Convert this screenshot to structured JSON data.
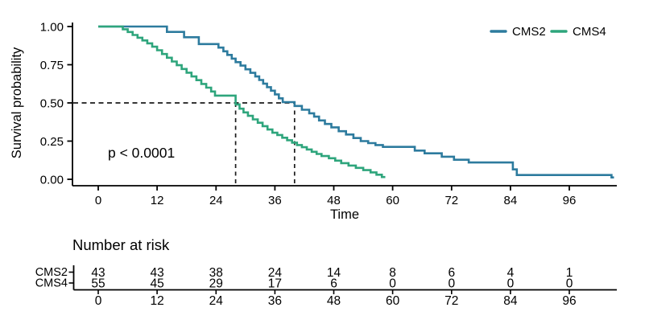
{
  "chart_data": {
    "type": "line",
    "subtype": "kaplan-meier-step",
    "title": "",
    "xlabel": "Time",
    "ylabel": "Survival probability",
    "annotation": "p < 0.0001",
    "legend_position": "top-right",
    "grid": false,
    "xlim": [
      0,
      105.5
    ],
    "ylim": [
      0,
      1
    ],
    "xticks": [
      0,
      12,
      24,
      36,
      48,
      60,
      72,
      84,
      96
    ],
    "yticks": [
      {
        "label": "1.00",
        "v": 1.0
      },
      {
        "label": "0.75",
        "v": 0.75
      },
      {
        "label": "0.50",
        "v": 0.5
      },
      {
        "label": "0.25",
        "v": 0.25
      },
      {
        "label": "0.00",
        "v": 0.0
      }
    ],
    "median_survival_reference": 0.5,
    "medians": [
      {
        "series": "CMS4",
        "time": 28
      },
      {
        "series": "CMS2",
        "time": 40
      }
    ],
    "style": {
      "axis_color": "#000000",
      "dashed_color": "#1a1a1a",
      "background": "#ffffff"
    },
    "series": [
      {
        "name": "CMS2",
        "color": "#2d7b9e",
        "end": 105.1,
        "steps": [
          [
            14,
            0.965
          ],
          [
            17.5,
            0.93
          ],
          [
            20.5,
            0.885
          ],
          [
            24.5,
            0.862
          ],
          [
            25.5,
            0.838
          ],
          [
            26.3,
            0.814
          ],
          [
            27.2,
            0.79
          ],
          [
            28,
            0.767
          ],
          [
            29,
            0.744
          ],
          [
            30,
            0.72
          ],
          [
            31,
            0.697
          ],
          [
            32,
            0.673
          ],
          [
            32.8,
            0.65
          ],
          [
            33.6,
            0.626
          ],
          [
            34.4,
            0.603
          ],
          [
            35.2,
            0.58
          ],
          [
            36,
            0.556
          ],
          [
            36.8,
            0.53
          ],
          [
            37.6,
            0.505
          ],
          [
            40,
            0.48
          ],
          [
            41.5,
            0.455
          ],
          [
            43,
            0.432
          ],
          [
            44,
            0.41
          ],
          [
            45,
            0.385
          ],
          [
            46.2,
            0.362
          ],
          [
            47.5,
            0.34
          ],
          [
            49,
            0.315
          ],
          [
            50.5,
            0.293
          ],
          [
            52,
            0.27
          ],
          [
            53.5,
            0.25
          ],
          [
            55,
            0.237
          ],
          [
            56.5,
            0.224
          ],
          [
            58,
            0.212
          ],
          [
            64.5,
            0.188
          ],
          [
            66.5,
            0.17
          ],
          [
            70,
            0.148
          ],
          [
            72.5,
            0.128
          ],
          [
            75.5,
            0.11
          ],
          [
            84.5,
            0.065
          ],
          [
            85.3,
            0.028
          ],
          [
            104.6,
            0.012
          ]
        ]
      },
      {
        "name": "CMS4",
        "color": "#2ea57c",
        "end": 58.5,
        "steps": [
          [
            5,
            0.982
          ],
          [
            6,
            0.964
          ],
          [
            7,
            0.945
          ],
          [
            8,
            0.927
          ],
          [
            9,
            0.909
          ],
          [
            10,
            0.89
          ],
          [
            11,
            0.868
          ],
          [
            12,
            0.845
          ],
          [
            13,
            0.82
          ],
          [
            14,
            0.796
          ],
          [
            15,
            0.771
          ],
          [
            16,
            0.747
          ],
          [
            17,
            0.722
          ],
          [
            18,
            0.698
          ],
          [
            19,
            0.673
          ],
          [
            20,
            0.649
          ],
          [
            21,
            0.624
          ],
          [
            22,
            0.6
          ],
          [
            23,
            0.575
          ],
          [
            23.8,
            0.548
          ],
          [
            28,
            0.49
          ],
          [
            28.8,
            0.462
          ],
          [
            29.6,
            0.438
          ],
          [
            30.5,
            0.415
          ],
          [
            31.5,
            0.392
          ],
          [
            32.5,
            0.37
          ],
          [
            33.5,
            0.348
          ],
          [
            34.5,
            0.326
          ],
          [
            35.5,
            0.305
          ],
          [
            36.5,
            0.29
          ],
          [
            37.5,
            0.272
          ],
          [
            38.5,
            0.256
          ],
          [
            39.5,
            0.24
          ],
          [
            40.5,
            0.224
          ],
          [
            41.5,
            0.21
          ],
          [
            42.5,
            0.195
          ],
          [
            43.5,
            0.18
          ],
          [
            44.5,
            0.166
          ],
          [
            45.5,
            0.152
          ],
          [
            47,
            0.138
          ],
          [
            48.3,
            0.122
          ],
          [
            49.5,
            0.106
          ],
          [
            51,
            0.09
          ],
          [
            52.5,
            0.075
          ],
          [
            54,
            0.06
          ],
          [
            55.5,
            0.045
          ],
          [
            56.7,
            0.03
          ],
          [
            57.8,
            0.015
          ]
        ]
      }
    ],
    "risk_table": {
      "title": "Number at risk",
      "times": [
        0,
        12,
        24,
        36,
        48,
        60,
        72,
        84,
        96
      ],
      "rows": [
        {
          "name": "CMS2",
          "color": "#2d7b9e",
          "counts": [
            43,
            43,
            38,
            24,
            14,
            8,
            6,
            4,
            1
          ]
        },
        {
          "name": "CMS4",
          "color": "#2ea57c",
          "counts": [
            55,
            45,
            29,
            17,
            6,
            0,
            0,
            0,
            0
          ]
        }
      ]
    }
  }
}
